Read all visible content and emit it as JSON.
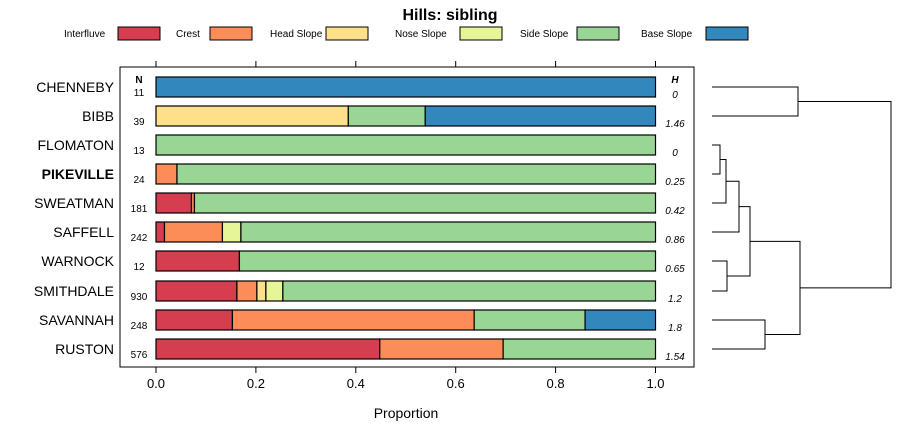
{
  "chart_data": {
    "type": "stacked-bar-horizontal",
    "title": "Hills: sibling",
    "xlabel": "Proportion",
    "xlim": [
      0,
      1
    ],
    "xticks": [
      "0.0",
      "0.2",
      "0.4",
      "0.6",
      "0.8",
      "1.0"
    ],
    "n_header": "N",
    "h_header": "H",
    "legend": [
      {
        "name": "Interfluve",
        "color": "#D53E4F"
      },
      {
        "name": "Crest",
        "color": "#FC8D59"
      },
      {
        "name": "Head Slope",
        "color": "#FEE08B"
      },
      {
        "name": "Nose Slope",
        "color": "#E6F598"
      },
      {
        "name": "Side Slope",
        "color": "#99D594"
      },
      {
        "name": "Base Slope",
        "color": "#3288BD"
      }
    ],
    "rows": [
      {
        "label": "CHENNEBY",
        "bold": false,
        "n": "11",
        "h": "0",
        "values": [
          0,
          0,
          0,
          0,
          0,
          1.0
        ]
      },
      {
        "label": "BIBB",
        "bold": false,
        "n": "39",
        "h": "1.46",
        "values": [
          0,
          0,
          0.385,
          0,
          0.154,
          0.461
        ]
      },
      {
        "label": "FLOMATON",
        "bold": false,
        "n": "13",
        "h": "0",
        "values": [
          0,
          0,
          0,
          0,
          1.0,
          0
        ]
      },
      {
        "label": "PIKEVILLE",
        "bold": true,
        "n": "24",
        "h": "0.25",
        "values": [
          0,
          0.042,
          0,
          0,
          0.958,
          0
        ]
      },
      {
        "label": "SWEATMAN",
        "bold": false,
        "n": "181",
        "h": "0.42",
        "values": [
          0.071,
          0.006,
          0,
          0,
          0.923,
          0
        ]
      },
      {
        "label": "SAFFELL",
        "bold": false,
        "n": "242",
        "h": "0.86",
        "values": [
          0.017,
          0.116,
          0,
          0.037,
          0.83,
          0
        ]
      },
      {
        "label": "WARNOCK",
        "bold": false,
        "n": "12",
        "h": "0.65",
        "values": [
          0.167,
          0,
          0,
          0,
          0.833,
          0
        ]
      },
      {
        "label": "SMITHDALE",
        "bold": false,
        "n": "930",
        "h": "1.2",
        "values": [
          0.162,
          0.04,
          0.018,
          0.034,
          0.746,
          0
        ]
      },
      {
        "label": "SAVANNAH",
        "bold": false,
        "n": "248",
        "h": "1.8",
        "values": [
          0.153,
          0.484,
          0,
          0,
          0.222,
          0.141
        ]
      },
      {
        "label": "RUSTON",
        "bold": false,
        "n": "576",
        "h": "1.54",
        "values": [
          0.448,
          0.247,
          0,
          0,
          0.305,
          0
        ]
      }
    ]
  }
}
